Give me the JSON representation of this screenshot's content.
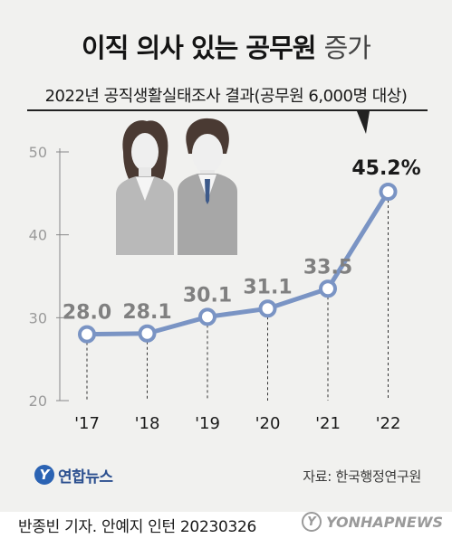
{
  "header": {
    "title_main": "이직 의사 있는 공무원",
    "title_tail": "증가",
    "subtitle": "2022년 공직생활실태조사 결과(공무원 6,000명 대상)"
  },
  "chart_data": {
    "type": "line",
    "title": "이직 의사 있는 공무원 증가",
    "subtitle": "2022년 공직생활실태조사 결과(공무원 6,000명 대상)",
    "categories": [
      "'17",
      "'18",
      "'19",
      "'20",
      "'21",
      "'22"
    ],
    "values": [
      28.0,
      28.1,
      30.1,
      31.1,
      33.5,
      45.2
    ],
    "data_labels": [
      "28.0",
      "28.1",
      "30.1",
      "31.1",
      "33.5",
      "45.2%"
    ],
    "y_ticks": [
      20,
      30,
      40,
      50
    ],
    "y_tick_labels": [
      "20",
      "30",
      "40",
      "50"
    ],
    "ylim": [
      20,
      50
    ],
    "xlabel": "",
    "ylabel": "",
    "grid": false,
    "line_color": "#7a94c4",
    "highlight_color": "#1a1a1a",
    "label_color": "#808080"
  },
  "footer": {
    "logo_mark": "Y",
    "logo_text": "연합뉴스",
    "source": "자료: 한국행정연구원",
    "credit": "반종빈 기자. 안예지 인턴  20230326",
    "watermark_mark": "Y",
    "watermark_text": "YONHAPNEWS"
  }
}
